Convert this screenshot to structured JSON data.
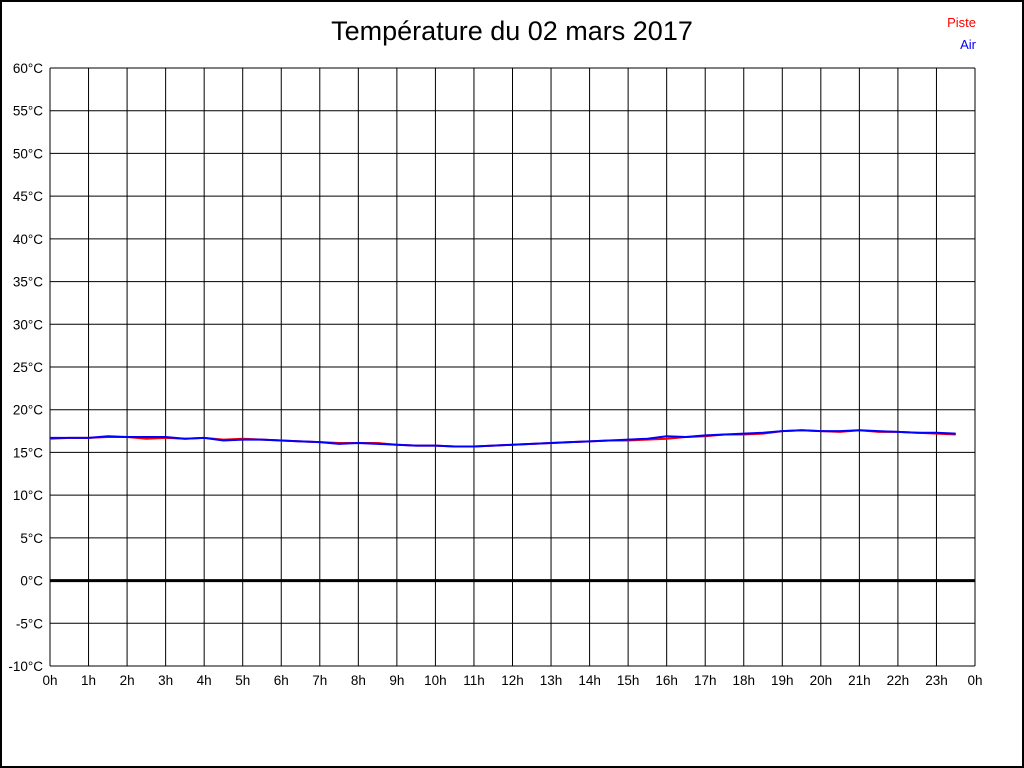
{
  "title": "Température du 02 mars 2017",
  "legend": {
    "piste": {
      "label": "Piste",
      "color": "#ff0000"
    },
    "air": {
      "label": "Air",
      "color": "#0000ff"
    }
  },
  "colors": {
    "grid": "#000000",
    "zero_line": "#000000",
    "background": "#ffffff",
    "border": "#000000"
  },
  "chart_data": {
    "type": "line",
    "title": "Température du 02 mars 2017",
    "xlabel": "",
    "ylabel": "",
    "xlim": [
      0,
      24
    ],
    "ylim": [
      -10,
      60
    ],
    "x_tick_step": 1,
    "y_tick_step": 5,
    "grid": true,
    "legend_position": "top-right",
    "zero_line": {
      "value": 0,
      "width": 3,
      "color": "#000000"
    },
    "x_tick_labels": [
      "0h",
      "1h",
      "2h",
      "3h",
      "4h",
      "5h",
      "6h",
      "7h",
      "8h",
      "9h",
      "10h",
      "11h",
      "12h",
      "13h",
      "14h",
      "15h",
      "16h",
      "17h",
      "18h",
      "19h",
      "20h",
      "21h",
      "22h",
      "23h",
      "0h"
    ],
    "y_tick_labels": [
      "-10°C",
      "-5°C",
      "0°C",
      "5°C",
      "10°C",
      "15°C",
      "20°C",
      "25°C",
      "30°C",
      "35°C",
      "40°C",
      "45°C",
      "50°C",
      "55°C",
      "60°C"
    ],
    "x": [
      0,
      0.5,
      1,
      1.5,
      2,
      2.5,
      3,
      3.5,
      4,
      4.5,
      5,
      5.5,
      6,
      6.5,
      7,
      7.5,
      8,
      8.5,
      9,
      9.5,
      10,
      10.5,
      11,
      11.5,
      12,
      12.5,
      13,
      13.5,
      14,
      14.5,
      15,
      15.5,
      16,
      16.5,
      17,
      17.5,
      18,
      18.5,
      19,
      19.5,
      20,
      20.5,
      21,
      21.5,
      22,
      22.5,
      23,
      23.5
    ],
    "series": [
      {
        "name": "Piste",
        "color": "#ff0000",
        "values": [
          16.6,
          16.7,
          16.7,
          16.8,
          16.8,
          16.6,
          16.7,
          16.6,
          16.7,
          16.5,
          16.6,
          16.5,
          16.4,
          16.3,
          16.2,
          16.1,
          16.1,
          16.1,
          15.9,
          15.8,
          15.8,
          15.7,
          15.7,
          15.8,
          15.9,
          16.0,
          16.1,
          16.2,
          16.3,
          16.4,
          16.4,
          16.5,
          16.6,
          16.8,
          16.9,
          17.1,
          17.1,
          17.2,
          17.5,
          17.6,
          17.5,
          17.4,
          17.6,
          17.4,
          17.4,
          17.3,
          17.2,
          17.1
        ]
      },
      {
        "name": "Air",
        "color": "#0000ff",
        "values": [
          16.7,
          16.7,
          16.7,
          16.9,
          16.8,
          16.8,
          16.8,
          16.6,
          16.7,
          16.4,
          16.5,
          16.5,
          16.4,
          16.3,
          16.2,
          16.0,
          16.1,
          16.0,
          15.9,
          15.8,
          15.8,
          15.7,
          15.7,
          15.8,
          15.9,
          16.0,
          16.1,
          16.2,
          16.3,
          16.4,
          16.5,
          16.6,
          16.9,
          16.8,
          17.0,
          17.1,
          17.2,
          17.3,
          17.5,
          17.6,
          17.5,
          17.5,
          17.6,
          17.5,
          17.4,
          17.3,
          17.3,
          17.2
        ]
      }
    ]
  }
}
